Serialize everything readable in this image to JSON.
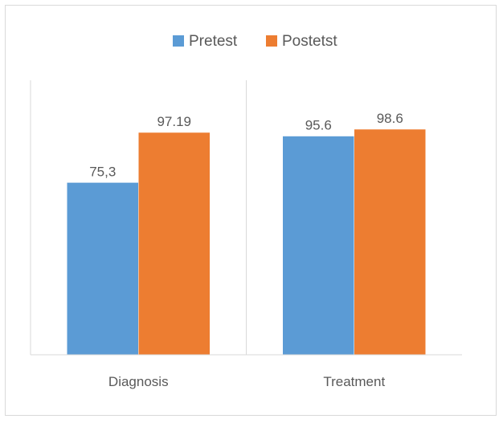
{
  "chart_data": {
    "type": "bar",
    "title": "",
    "xlabel": "",
    "ylabel": "",
    "categories": [
      "Diagnosis",
      "Treatment"
    ],
    "series": [
      {
        "name": "Pretest",
        "values": [
          75.3,
          95.6
        ],
        "labels": [
          "75,3",
          "95.6"
        ],
        "color": "#5b9bd5"
      },
      {
        "name": "Postetst",
        "values": [
          97.19,
          98.6
        ],
        "labels": [
          "97.19",
          "98.6"
        ],
        "color": "#ed7d31"
      }
    ],
    "ylim": [
      0,
      120
    ],
    "grid": false,
    "legend_position": "top",
    "axis_color": "#d9d9d9",
    "text_color": "#595959"
  }
}
